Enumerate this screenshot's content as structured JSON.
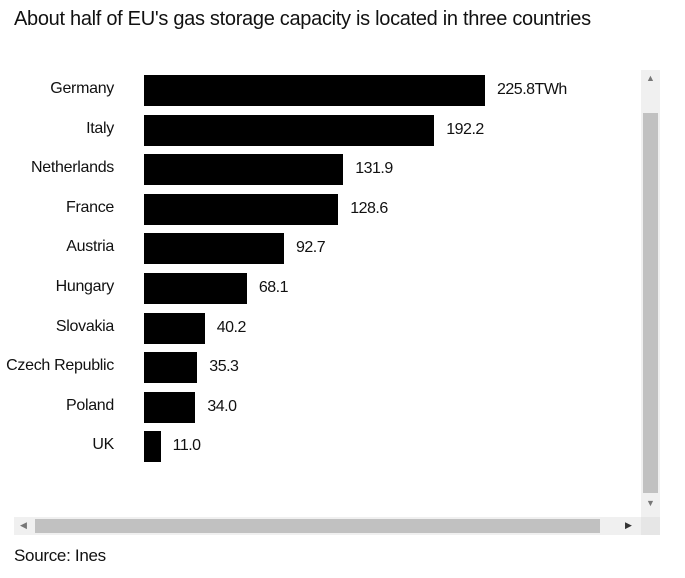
{
  "chart_data": {
    "type": "bar",
    "orientation": "horizontal",
    "title": "About half of EU's gas storage capacity is located in three countries",
    "categories": [
      "Germany",
      "Italy",
      "Netherlands",
      "France",
      "Austria",
      "Hungary",
      "Slovakia",
      "Czech Republic",
      "Poland",
      "UK"
    ],
    "values": [
      225.8,
      192.2,
      131.9,
      128.6,
      92.7,
      68.1,
      40.2,
      35.3,
      34.0,
      11.0
    ],
    "value_labels": [
      "225.8TWh",
      "192.2",
      "131.9",
      "128.6",
      "92.7",
      "68.1",
      "40.2",
      "35.3",
      "34.0",
      "11.0"
    ],
    "unit": "TWh",
    "xlabel": "",
    "ylabel": "",
    "xlim": [
      0,
      225.8
    ],
    "bar_color": "#000000",
    "source": "Source: Ines"
  }
}
